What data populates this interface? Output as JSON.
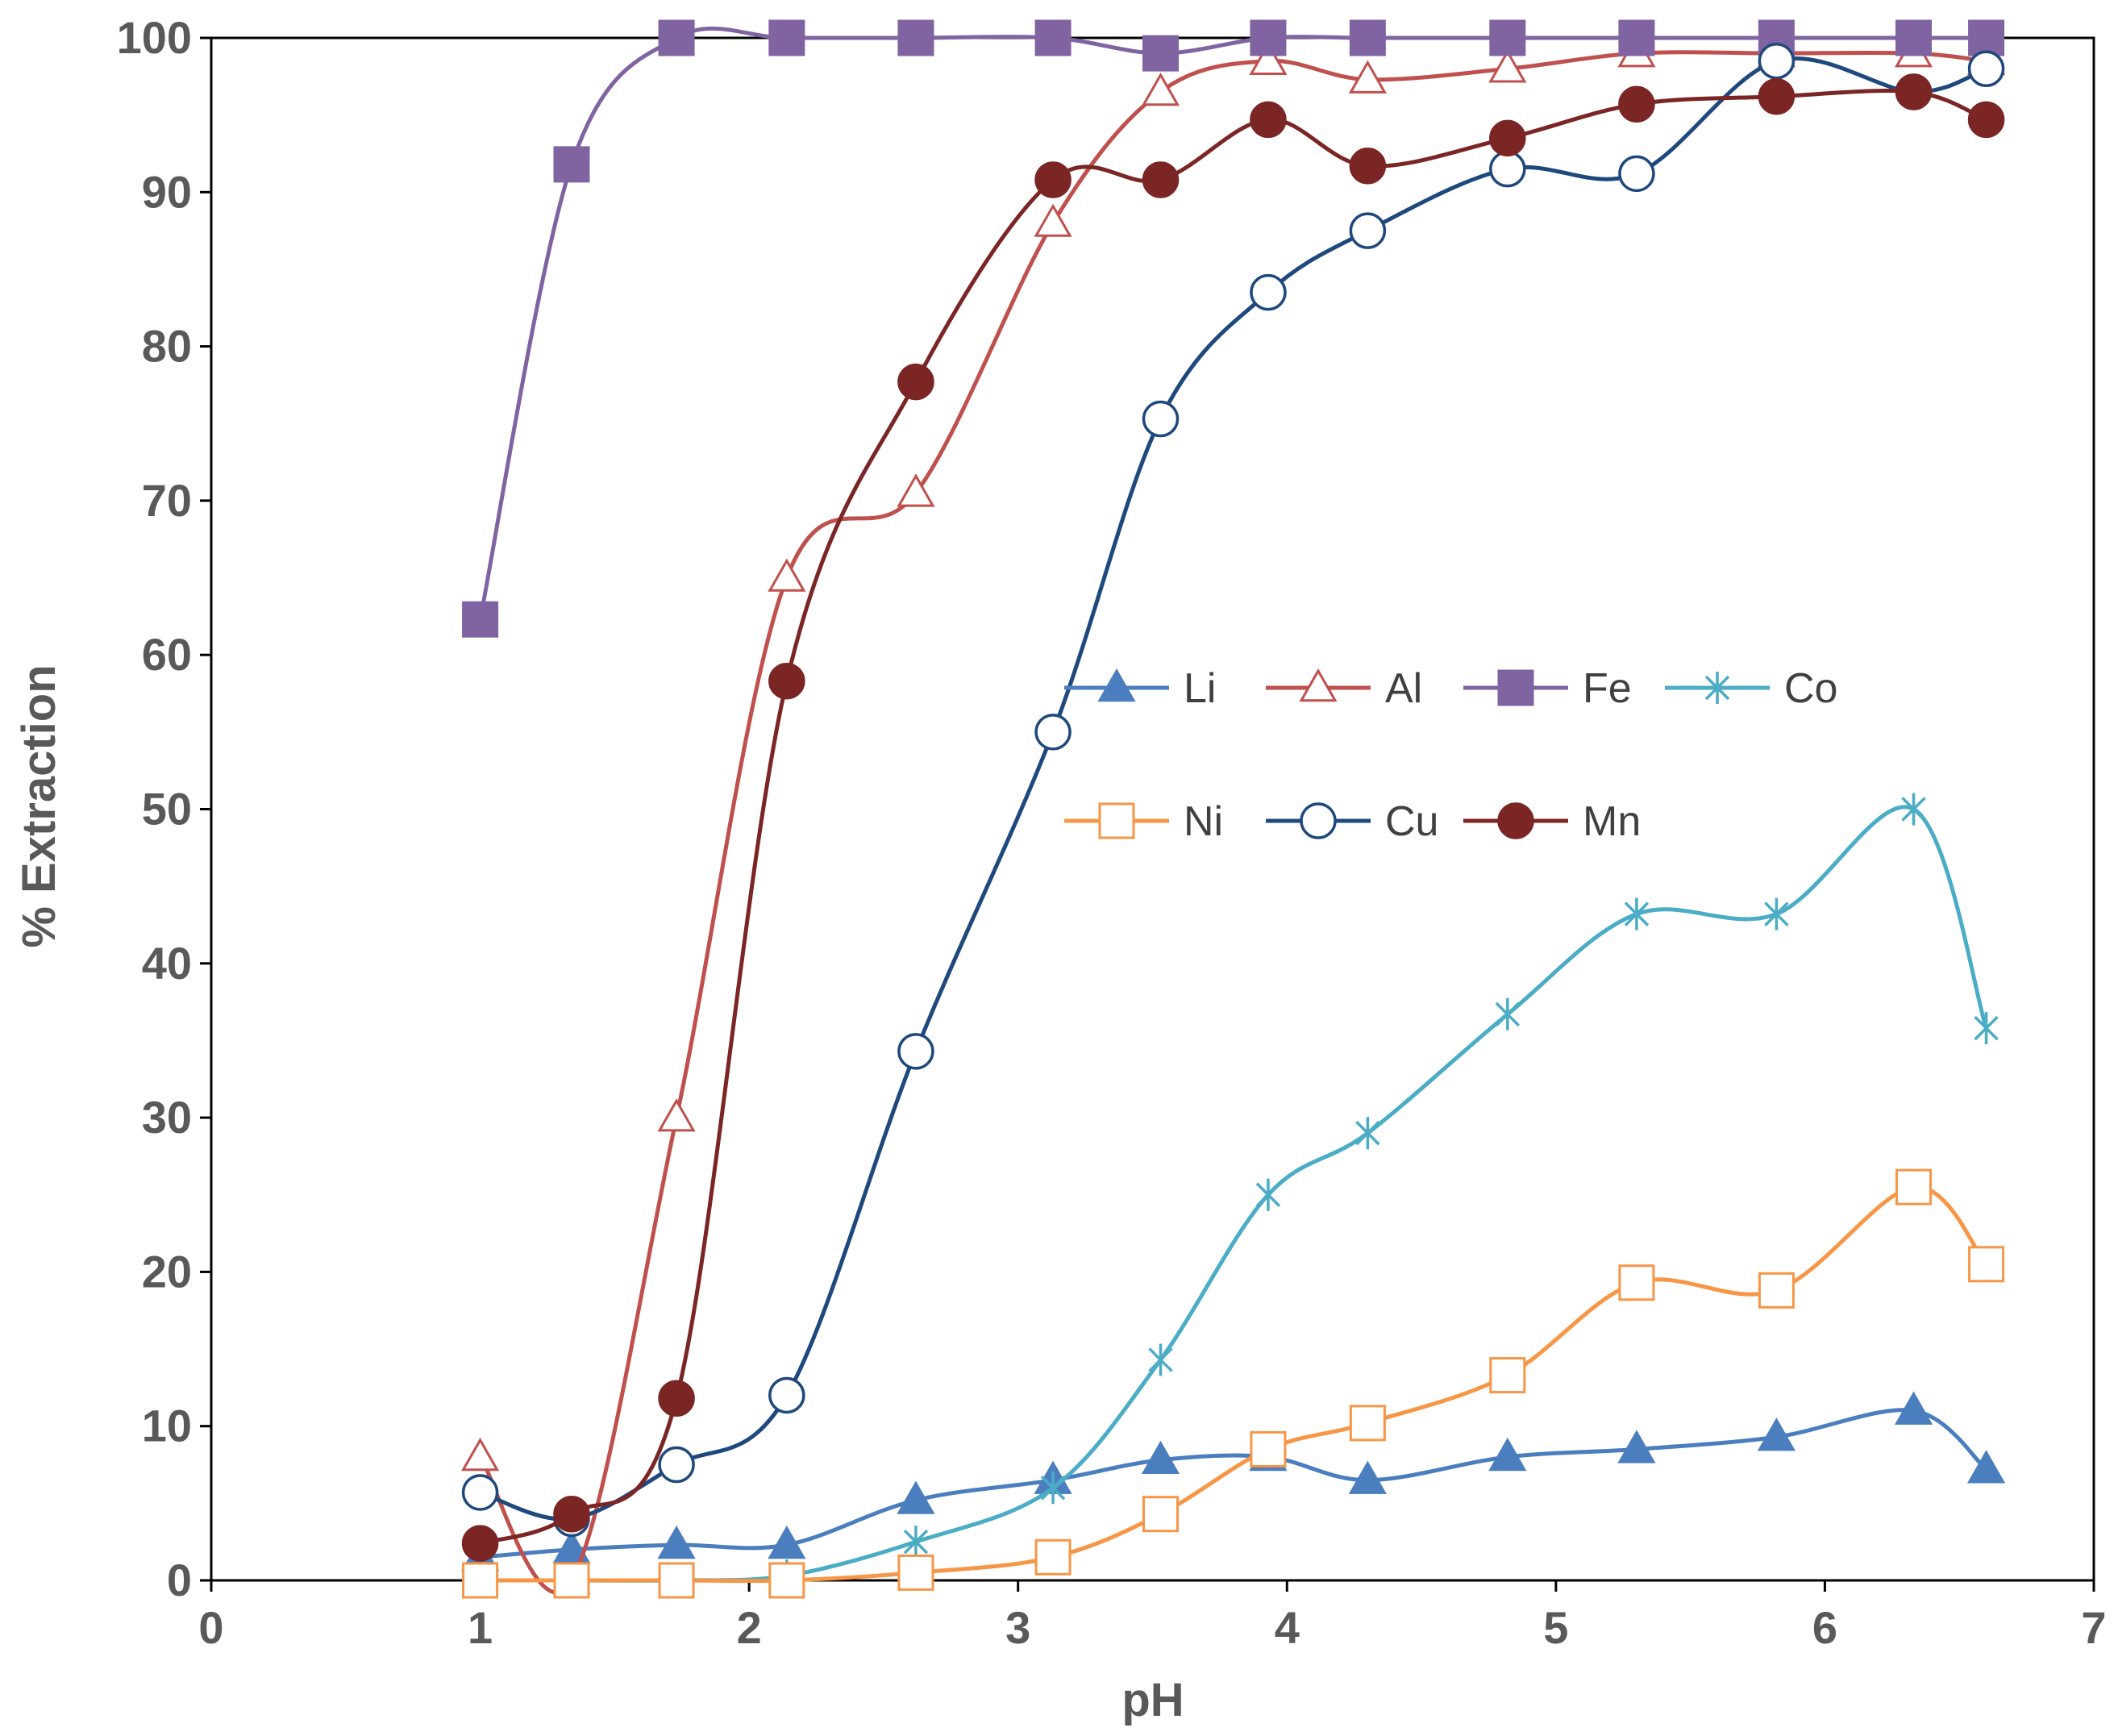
{
  "chart_data": {
    "type": "line",
    "title": "",
    "xlabel": "pH",
    "ylabel": "% Extraction",
    "xlim": [
      0,
      7
    ],
    "ylim": [
      0,
      100
    ],
    "xticks": [
      0,
      1,
      2,
      3,
      4,
      5,
      6,
      7
    ],
    "yticks": [
      0,
      10,
      20,
      30,
      40,
      50,
      60,
      70,
      80,
      90,
      100
    ],
    "grid": false,
    "legend_position": "center-right",
    "x": [
      1.0,
      1.34,
      1.73,
      2.14,
      2.62,
      3.13,
      3.53,
      3.93,
      4.3,
      4.82,
      5.3,
      5.82,
      6.33,
      6.6
    ],
    "series": [
      {
        "name": "Li",
        "color": "#4a7ebf",
        "marker": "triangle-filled",
        "values": [
          1.5,
          2.0,
          2.3,
          2.3,
          5.2,
          6.5,
          7.8,
          8.0,
          6.5,
          8.0,
          8.5,
          9.3,
          11.0,
          7.2
        ]
      },
      {
        "name": "Al",
        "color": "#c0504d",
        "marker": "triangle-open",
        "values": [
          8.0,
          0.0,
          30.0,
          65.0,
          70.5,
          88.0,
          96.5,
          98.5,
          97.3,
          98.0,
          99.0,
          99.0,
          99.0,
          98.5
        ]
      },
      {
        "name": "Fe",
        "color": "#8064a2",
        "marker": "square-filled",
        "values": [
          62.3,
          91.8,
          100.0,
          100.0,
          100.0,
          100.0,
          99.0,
          100.0,
          100.0,
          100.0,
          100.0,
          100.0,
          100.0,
          100.0
        ]
      },
      {
        "name": "Co",
        "color": "#4bacc6",
        "marker": "asterisk",
        "values": [
          0.0,
          0.0,
          0.0,
          0.3,
          2.5,
          6.0,
          14.3,
          25.0,
          29.0,
          36.7,
          43.2,
          43.2,
          50.0,
          35.8
        ]
      },
      {
        "name": "Ni",
        "color": "#f79646",
        "marker": "square-open",
        "values": [
          0.0,
          0.0,
          0.0,
          0.0,
          0.5,
          1.5,
          4.3,
          8.5,
          10.2,
          13.3,
          19.3,
          18.8,
          25.5,
          20.5
        ]
      },
      {
        "name": "Cu",
        "color": "#1f497d",
        "marker": "circle-open",
        "values": [
          5.7,
          4.0,
          7.5,
          12.0,
          34.3,
          55.0,
          75.3,
          83.5,
          87.5,
          91.5,
          91.2,
          98.5,
          96.5,
          98.0
        ]
      },
      {
        "name": "Mn",
        "color": "#7b2525",
        "marker": "circle-filled",
        "values": [
          2.4,
          4.3,
          11.8,
          58.3,
          77.7,
          90.8,
          90.8,
          94.7,
          91.7,
          93.5,
          95.7,
          96.2,
          96.5,
          94.7
        ]
      }
    ]
  }
}
